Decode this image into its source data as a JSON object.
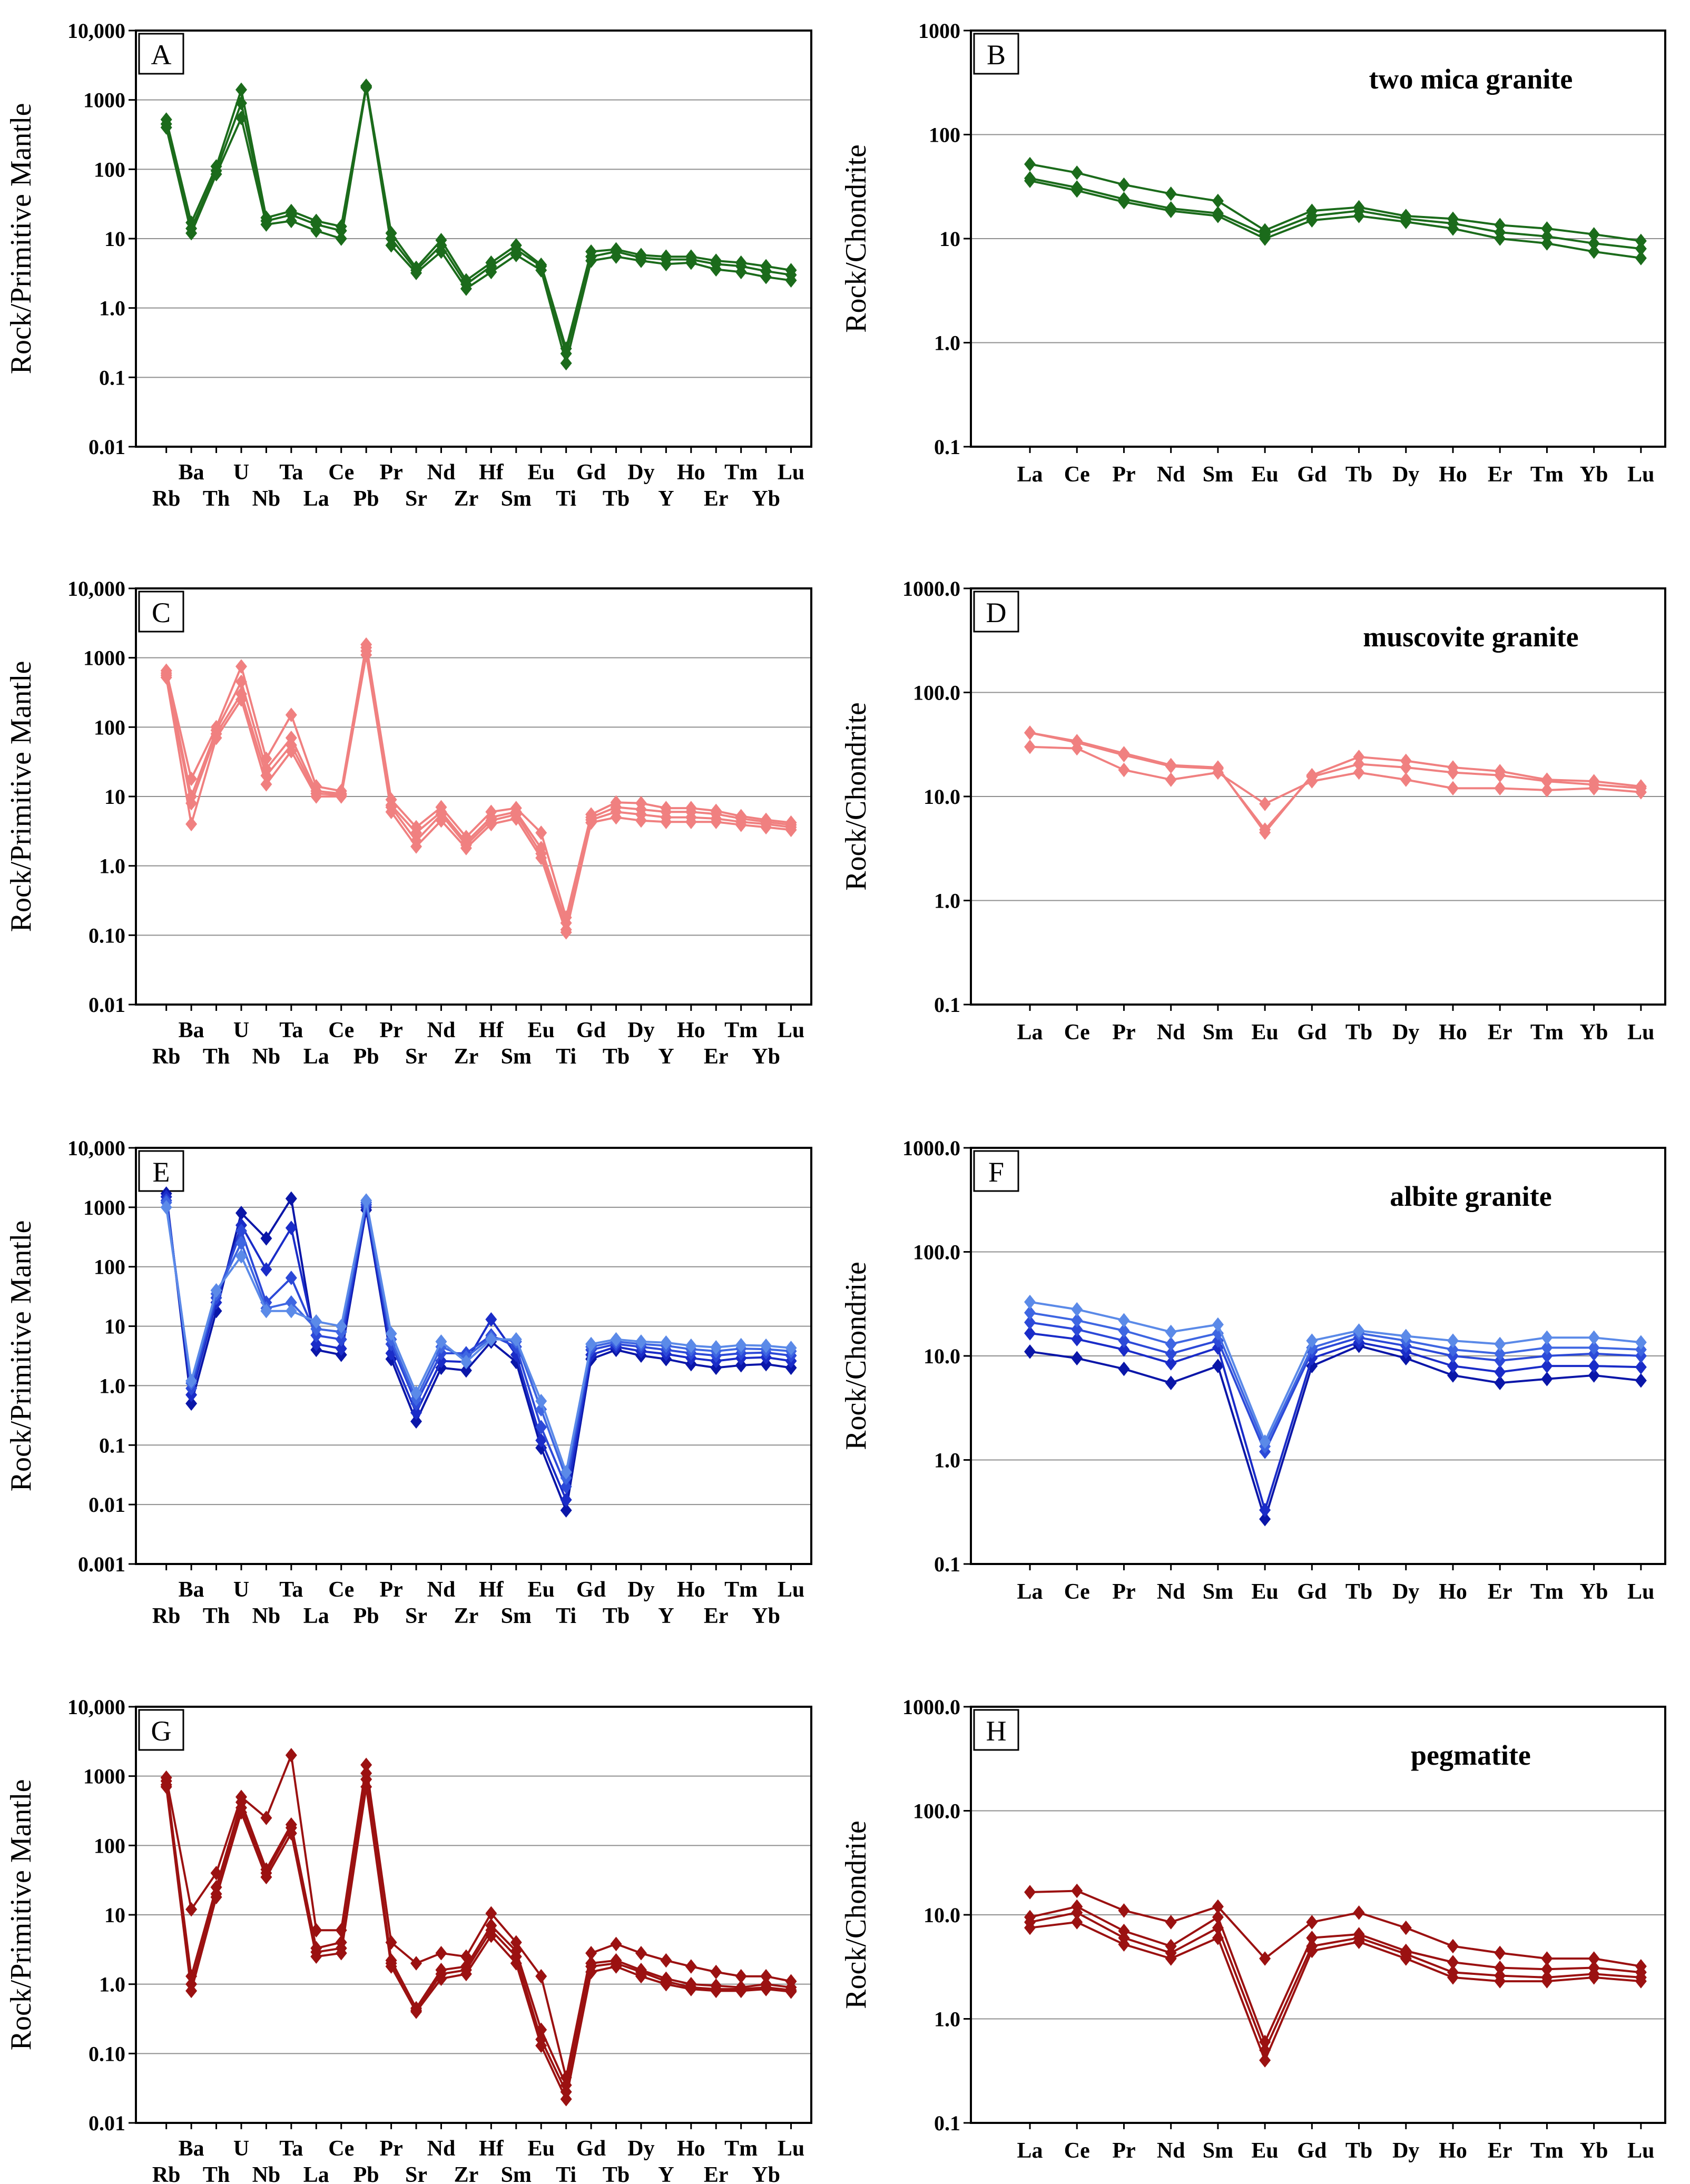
{
  "chart_data": [
    {
      "panel": "A",
      "type": "line",
      "scale": "log",
      "ylabel": "Rock/Primitive Mantle",
      "title": "",
      "ylim": [
        0.01,
        10000
      ],
      "yticks": [
        "0.01",
        "0.1",
        "1.0",
        "10",
        "100",
        "1000",
        "10,000"
      ],
      "color": "#1b6b1b",
      "categories": [
        "Rb",
        "Ba",
        "Th",
        "U",
        "Nb",
        "Ta",
        "La",
        "Ce",
        "Pb",
        "Pr",
        "Sr",
        "Nd",
        "Zr",
        "Hf",
        "Sm",
        "Eu",
        "Ti",
        "Gd",
        "Tb",
        "Dy",
        "Y",
        "Ho",
        "Er",
        "Tm",
        "Yb",
        "Lu"
      ],
      "series": [
        {
          "values": [
            520,
            17,
            110,
            1400,
            20,
            25,
            18,
            15,
            1600,
            12,
            3.8,
            9.5,
            2.5,
            4.5,
            8,
            4.2,
            0.26,
            6.5,
            7,
            5.8,
            5.5,
            5.5,
            4.8,
            4.5,
            4,
            3.5
          ]
        },
        {
          "values": [
            450,
            14,
            95,
            900,
            18,
            22,
            16,
            13,
            1550,
            10,
            3.5,
            8,
            2.2,
            4,
            7,
            4,
            0.22,
            5.5,
            6.5,
            5.3,
            5,
            5,
            4.3,
            4,
            3.4,
            3
          ]
        },
        {
          "values": [
            400,
            12,
            85,
            550,
            16,
            18,
            13,
            10,
            1500,
            8,
            3.2,
            6.5,
            1.9,
            3.3,
            5.8,
            3.5,
            0.16,
            4.8,
            5.5,
            4.8,
            4.3,
            4.5,
            3.6,
            3.3,
            2.8,
            2.5
          ]
        }
      ]
    },
    {
      "panel": "B",
      "type": "line",
      "scale": "log",
      "ylabel": "Rock/Chondrite",
      "title": "two mica granite",
      "ylim": [
        0.1,
        1000
      ],
      "yticks": [
        "0.1",
        "1.0",
        "10",
        "100",
        "1000"
      ],
      "color": "#1b6b1b",
      "categories": [
        "La",
        "Ce",
        "Pr",
        "Nd",
        "Sm",
        "Eu",
        "Gd",
        "Tb",
        "Dy",
        "Ho",
        "Er",
        "Tm",
        "Yb",
        "Lu"
      ],
      "series": [
        {
          "values": [
            52,
            43,
            33,
            27,
            23,
            12,
            18.5,
            20,
            16.5,
            15.5,
            13.5,
            12.5,
            11,
            9.5
          ]
        },
        {
          "values": [
            38,
            31,
            24,
            19.5,
            17.5,
            11,
            16.5,
            18.5,
            15.5,
            14,
            11.5,
            10.5,
            9,
            8
          ]
        },
        {
          "values": [
            36,
            29,
            22.5,
            18.5,
            16.5,
            10,
            15,
            16.5,
            14.5,
            12.5,
            10,
            9,
            7.5,
            6.5
          ]
        }
      ]
    },
    {
      "panel": "C",
      "type": "line",
      "scale": "log",
      "ylabel": "Rock/Primitive Mantle",
      "title": "",
      "ylim": [
        0.01,
        10000
      ],
      "yticks": [
        "0.01",
        "0.10",
        "1.0",
        "10",
        "100",
        "1000",
        "10,000"
      ],
      "color": "#f08080",
      "categories": [
        "Rb",
        "Ba",
        "Th",
        "U",
        "Nb",
        "Ta",
        "La",
        "Ce",
        "Pb",
        "Pr",
        "Sr",
        "Nd",
        "Zr",
        "Hf",
        "Sm",
        "Eu",
        "Ti",
        "Gd",
        "Tb",
        "Dy",
        "Y",
        "Ho",
        "Er",
        "Tm",
        "Yb",
        "Lu"
      ],
      "series": [
        {
          "values": [
            650,
            18,
            100,
            750,
            35,
            150,
            14,
            12,
            1550,
            9,
            3.6,
            7,
            2.6,
            6,
            6.8,
            3,
            0.18,
            5.5,
            8.2,
            8,
            6.8,
            6.8,
            6.2,
            5.2,
            4.6,
            4.2
          ]
        },
        {
          "values": [
            600,
            10,
            90,
            450,
            25,
            70,
            12,
            11,
            1400,
            7.5,
            3,
            6,
            2.2,
            5,
            6,
            1.8,
            0.15,
            5,
            7,
            6.5,
            6,
            6,
            5.6,
            4.8,
            4.3,
            3.9
          ]
        },
        {
          "values": [
            560,
            8,
            80,
            300,
            20,
            55,
            11,
            10.5,
            1250,
            7,
            2.3,
            5.5,
            2,
            4.5,
            5.5,
            1.5,
            0.12,
            4.6,
            6,
            5.5,
            5,
            5,
            4.8,
            4.3,
            4,
            3.6
          ]
        },
        {
          "values": [
            520,
            4,
            70,
            250,
            15,
            45,
            10,
            10,
            1100,
            6,
            1.9,
            4.5,
            1.8,
            4,
            4.8,
            1.3,
            0.11,
            4.2,
            5,
            4.5,
            4.3,
            4.3,
            4.3,
            3.9,
            3.6,
            3.3
          ]
        }
      ]
    },
    {
      "panel": "D",
      "type": "line",
      "scale": "log",
      "ylabel": "Rock/Chondrite",
      "title": "muscovite granite",
      "ylim": [
        0.1,
        1000
      ],
      "yticks": [
        "0.1",
        "1.0",
        "10.0",
        "100.0",
        "1000.0"
      ],
      "color": "#f08080",
      "categories": [
        "La",
        "Ce",
        "Pr",
        "Nd",
        "Sm",
        "Eu",
        "Gd",
        "Tb",
        "Dy",
        "Ho",
        "Er",
        "Tm",
        "Yb",
        "Lu"
      ],
      "series": [
        {
          "values": [
            41,
            34,
            26,
            20,
            19,
            4.5,
            16,
            24,
            22,
            19,
            17.5,
            14.5,
            14,
            12.5
          ]
        },
        {
          "values": [
            41,
            33,
            25,
            19.5,
            18.5,
            4.8,
            15.5,
            20.5,
            19,
            17,
            16,
            14,
            13,
            12
          ]
        },
        {
          "values": [
            30,
            29,
            18,
            14.5,
            17,
            8.5,
            14,
            17,
            14.5,
            12,
            12,
            11.5,
            12,
            11
          ]
        }
      ]
    },
    {
      "panel": "E",
      "type": "line",
      "scale": "log",
      "ylabel": "Rock/Primitive Mantle",
      "title": "",
      "ylim": [
        0.001,
        10000
      ],
      "yticks": [
        "0.001",
        "0.01",
        "0.1",
        "1.0",
        "10",
        "100",
        "1000",
        "10,000"
      ],
      "categories": [
        "Rb",
        "Ba",
        "Th",
        "U",
        "Nb",
        "Ta",
        "La",
        "Ce",
        "Pb",
        "Pr",
        "Sr",
        "Nd",
        "Zr",
        "Hf",
        "Sm",
        "Eu",
        "Ti",
        "Gd",
        "Tb",
        "Dy",
        "Y",
        "Ho",
        "Er",
        "Tm",
        "Yb",
        "Lu"
      ],
      "series": [
        {
          "color": "#0a16a8",
          "values": [
            1700,
            0.5,
            18,
            800,
            300,
            1400,
            4,
            3.3,
            900,
            2.8,
            0.25,
            2,
            1.8,
            5.5,
            2.5,
            0.09,
            0.008,
            2.8,
            4,
            3.2,
            2.8,
            2.3,
            2,
            2.2,
            2.3,
            2
          ]
        },
        {
          "color": "#1a2cc8",
          "values": [
            1500,
            0.7,
            25,
            500,
            90,
            450,
            5,
            4.2,
            1000,
            3.5,
            0.35,
            2.6,
            2.5,
            13,
            3.3,
            0.12,
            0.012,
            3.3,
            4.5,
            3.8,
            3.4,
            2.9,
            2.6,
            2.9,
            3,
            2.6
          ]
        },
        {
          "color": "#2c49d8",
          "values": [
            1300,
            0.9,
            30,
            400,
            25,
            65,
            7,
            6,
            1100,
            5,
            0.5,
            3.5,
            3.5,
            7,
            4.5,
            0.2,
            0.02,
            4,
            5,
            4.5,
            4,
            3.5,
            3.2,
            3.5,
            3.6,
            3.2
          ]
        },
        {
          "color": "#3e66e2",
          "values": [
            1200,
            1.1,
            35,
            250,
            20,
            25,
            9,
            8,
            1200,
            6,
            0.6,
            4.5,
            3,
            6.5,
            5.5,
            0.4,
            0.028,
            4.5,
            5.5,
            5,
            4.7,
            4.1,
            3.8,
            4.2,
            4.1,
            3.8
          ]
        },
        {
          "color": "#5b8ae8",
          "values": [
            1000,
            1.2,
            40,
            150,
            18,
            18,
            12,
            10,
            1300,
            7.5,
            0.75,
            5.5,
            2.5,
            6,
            6,
            0.55,
            0.035,
            5,
            6,
            5.5,
            5.3,
            4.7,
            4.4,
            4.8,
            4.7,
            4.3
          ]
        }
      ]
    },
    {
      "panel": "F",
      "type": "line",
      "scale": "log",
      "ylabel": "Rock/Chondrite",
      "title": "albite granite",
      "ylim": [
        0.1,
        1000
      ],
      "yticks": [
        "0.1",
        "1.0",
        "10.0",
        "100.0",
        "1000.0"
      ],
      "categories": [
        "La",
        "Ce",
        "Pr",
        "Nd",
        "Sm",
        "Eu",
        "Gd",
        "Tb",
        "Dy",
        "Ho",
        "Er",
        "Tm",
        "Yb",
        "Lu"
      ],
      "series": [
        {
          "color": "#0a16a8",
          "values": [
            11,
            9.5,
            7.5,
            5.5,
            8,
            0.27,
            8,
            12.5,
            9.5,
            6.5,
            5.5,
            6,
            6.5,
            5.8
          ]
        },
        {
          "color": "#1a2cc8",
          "values": [
            16.5,
            14.5,
            11.5,
            8.5,
            12,
            0.33,
            9.5,
            13.5,
            11,
            8,
            7,
            8,
            8,
            7.8
          ]
        },
        {
          "color": "#2c49d8",
          "values": [
            21,
            18,
            14,
            10.5,
            14,
            1.2,
            11,
            15,
            12.5,
            10,
            9,
            10,
            10.5,
            10
          ]
        },
        {
          "color": "#3e66e2",
          "values": [
            26,
            22,
            17.5,
            13,
            16.5,
            1.35,
            12,
            16.5,
            14,
            11.5,
            10.5,
            12,
            12,
            11.5
          ]
        },
        {
          "color": "#5b8ae8",
          "values": [
            33,
            28,
            22,
            17,
            20,
            1.5,
            14,
            17.5,
            15.5,
            14,
            13,
            15,
            15,
            13.5
          ]
        }
      ]
    },
    {
      "panel": "G",
      "type": "line",
      "scale": "log",
      "ylabel": "Rock/Primitive Mantle",
      "title": "",
      "ylim": [
        0.01,
        10000
      ],
      "yticks": [
        "0.01",
        "0.10",
        "1.0",
        "10",
        "100",
        "1000",
        "10,000"
      ],
      "color": "#9b1111",
      "categories": [
        "Rb",
        "Ba",
        "Th",
        "U",
        "Nb",
        "Ta",
        "La",
        "Ce",
        "Pb",
        "Pr",
        "Sr",
        "Nd",
        "Zr",
        "Hf",
        "Sm",
        "Eu",
        "Ti",
        "Gd",
        "Tb",
        "Dy",
        "Y",
        "Ho",
        "Er",
        "Tm",
        "Yb",
        "Lu"
      ],
      "series": [
        {
          "values": [
            950,
            12,
            40,
            500,
            250,
            2000,
            6,
            6,
            1450,
            4,
            2,
            2.8,
            2.5,
            10.5,
            4,
            1.3,
            0.045,
            2.8,
            3.8,
            2.8,
            2.2,
            1.8,
            1.5,
            1.3,
            1.3,
            1.1
          ]
        },
        {
          "values": [
            850,
            1.3,
            25,
            420,
            45,
            200,
            3.3,
            4,
            1100,
            2.2,
            0.45,
            1.6,
            1.8,
            7,
            3,
            0.22,
            0.035,
            2,
            2.2,
            1.6,
            1.2,
            1,
            0.95,
            0.9,
            1,
            0.9
          ]
        },
        {
          "values": [
            750,
            1,
            20,
            350,
            40,
            180,
            2.9,
            3.3,
            900,
            2,
            0.42,
            1.4,
            1.6,
            6,
            2.5,
            0.16,
            0.028,
            1.8,
            2,
            1.5,
            1.1,
            0.9,
            0.85,
            0.85,
            0.9,
            0.82
          ]
        },
        {
          "values": [
            700,
            0.8,
            18,
            300,
            35,
            150,
            2.5,
            2.8,
            700,
            1.8,
            0.4,
            1.2,
            1.4,
            5,
            2,
            0.13,
            0.022,
            1.5,
            1.8,
            1.3,
            1,
            0.85,
            0.8,
            0.8,
            0.85,
            0.78
          ]
        }
      ]
    },
    {
      "panel": "H",
      "type": "line",
      "scale": "log",
      "ylabel": "Rock/Chondrite",
      "title": "pegmatite",
      "ylim": [
        0.1,
        1000
      ],
      "yticks": [
        "0.1",
        "1.0",
        "10.0",
        "100.0",
        "1000.0"
      ],
      "color": "#9b1111",
      "categories": [
        "La",
        "Ce",
        "Pr",
        "Nd",
        "Sm",
        "Eu",
        "Gd",
        "Tb",
        "Dy",
        "Ho",
        "Er",
        "Tm",
        "Yb",
        "Lu"
      ],
      "series": [
        {
          "values": [
            16.5,
            17,
            11,
            8.5,
            12,
            3.8,
            8.5,
            10.5,
            7.5,
            5,
            4.3,
            3.8,
            3.8,
            3.2
          ]
        },
        {
          "values": [
            9.5,
            12,
            7,
            5,
            9.5,
            0.6,
            6,
            6.5,
            4.5,
            3.5,
            3.1,
            3,
            3.1,
            2.8
          ]
        },
        {
          "values": [
            8.5,
            10.5,
            6,
            4.3,
            7.5,
            0.5,
            5,
            6,
            4.2,
            2.8,
            2.6,
            2.5,
            2.7,
            2.5
          ]
        },
        {
          "values": [
            7.5,
            8.5,
            5.2,
            3.8,
            6,
            0.4,
            4.5,
            5.5,
            3.8,
            2.5,
            2.3,
            2.3,
            2.5,
            2.3
          ]
        }
      ]
    }
  ]
}
